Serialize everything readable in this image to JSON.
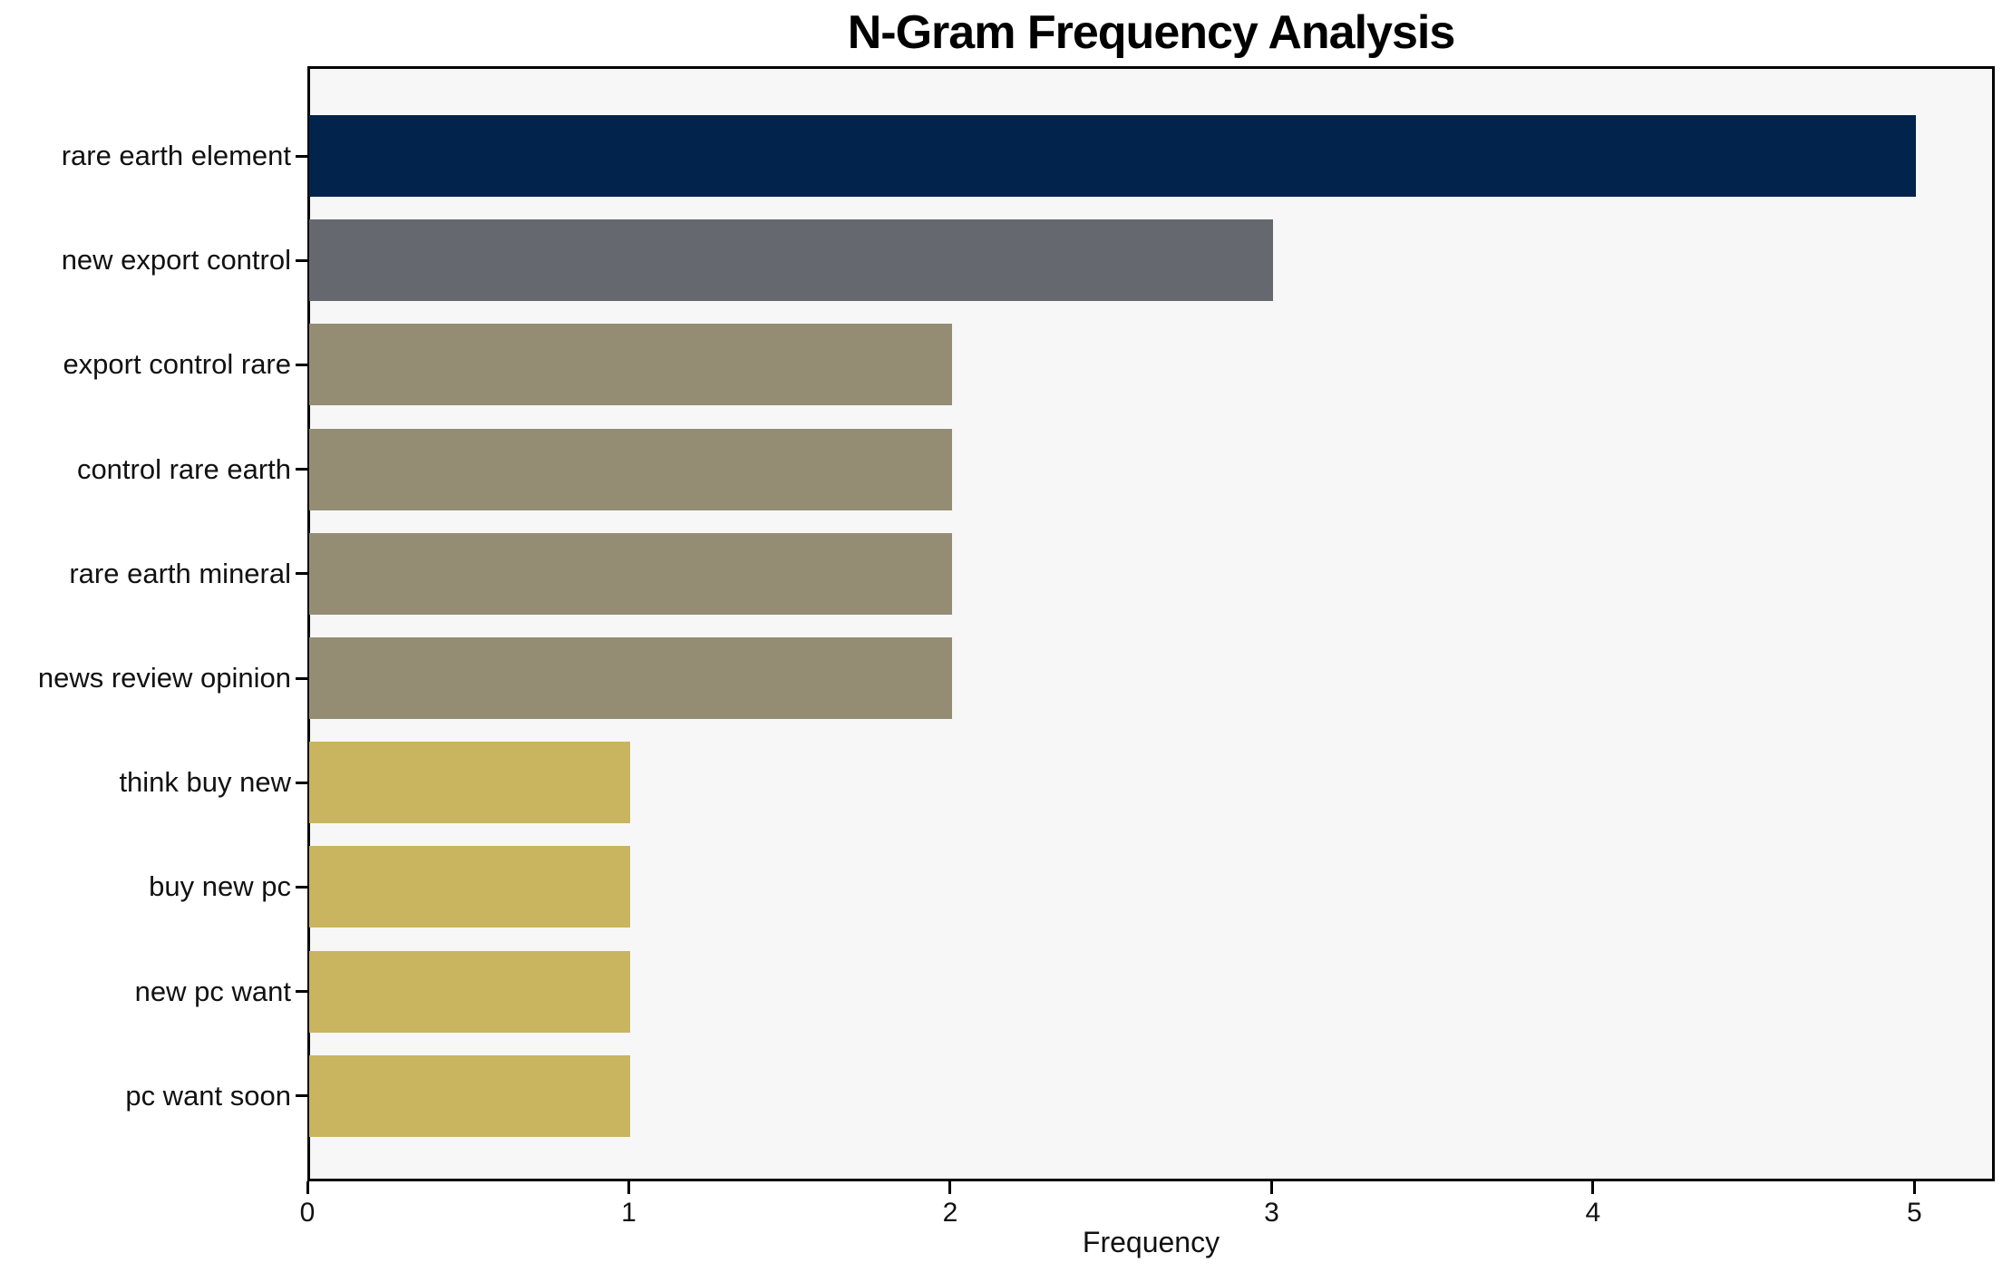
{
  "chart_data": {
    "type": "bar",
    "orientation": "horizontal",
    "title": "N-Gram Frequency Analysis",
    "xlabel": "Frequency",
    "ylabel": "",
    "categories": [
      "rare earth element",
      "new export control",
      "export control rare",
      "control rare earth",
      "rare earth mineral",
      "news review opinion",
      "think buy new",
      "buy new pc",
      "new pc want",
      "pc want soon"
    ],
    "values": [
      5,
      3,
      2,
      2,
      2,
      2,
      1,
      1,
      1,
      1
    ],
    "bar_colors": [
      "#02234C",
      "#65686F",
      "#948D73",
      "#948D73",
      "#948D73",
      "#948D73",
      "#C9B45F",
      "#C9B45F",
      "#C9B45F",
      "#C9B45F"
    ],
    "xlim": [
      0,
      5.25
    ],
    "xticks": [
      0,
      1,
      2,
      3,
      4,
      5
    ],
    "grid": false,
    "legend": null,
    "plot_background": "#f7f7f8",
    "figure_background": "#ffffff",
    "spine_color": "#000000"
  }
}
